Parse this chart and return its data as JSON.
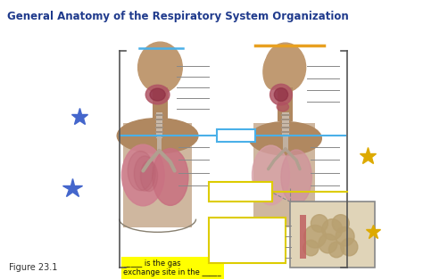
{
  "title": "General Anatomy of the Respiratory System Organization",
  "title_fontsize": 8.5,
  "title_color": "#1f3a8c",
  "title_fontweight": "bold",
  "bg_color": "#f4f0ec",
  "fig_caption": "Figure 23.1",
  "annotation_text": "_____ is the gas\nexchange site in the _____",
  "annotation_highlight": "#ffff00",
  "blue_line_color": "#4ab0e8",
  "orange_line_color": "#e8a020",
  "yellow_line_color": "#e8e020",
  "label_line_color": "#888888",
  "body_skin": "#c4996a",
  "body_shadow": "#a07850",
  "lung_color": "#d08090",
  "lung_dark": "#b05060",
  "trachea_color": "#c0b0a8",
  "nasal_color": "#b06070",
  "alveoli_bg": "#ddd0b8",
  "alveoli_cluster": "#c0a878",
  "vessel_color": "#c06060"
}
